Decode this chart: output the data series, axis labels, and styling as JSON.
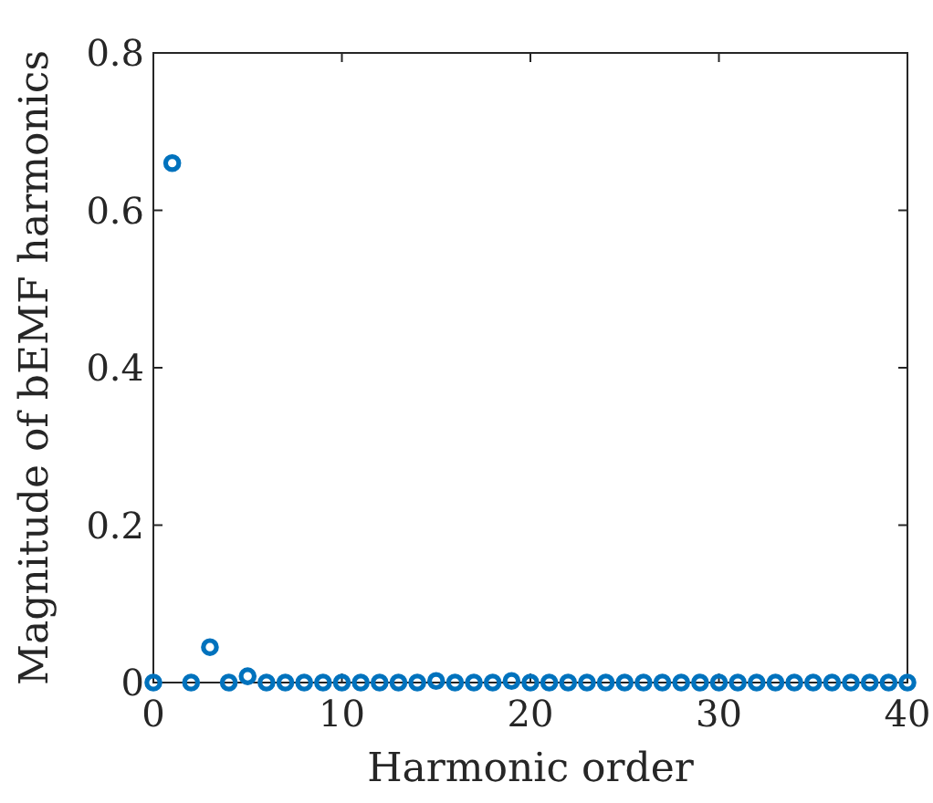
{
  "chart_data": {
    "type": "scatter",
    "xlabel": "Harmonic order",
    "ylabel": "Magnitude of bEMF harmonics",
    "x": [
      0,
      1,
      2,
      3,
      4,
      5,
      6,
      7,
      8,
      9,
      10,
      11,
      12,
      13,
      14,
      15,
      16,
      17,
      18,
      19,
      20,
      21,
      22,
      23,
      24,
      25,
      26,
      27,
      28,
      29,
      30,
      31,
      32,
      33,
      34,
      35,
      36,
      37,
      38,
      39,
      40
    ],
    "series": [
      {
        "color": "#0072bd",
        "values": [
          0,
          0.66,
          0,
          0.045,
          0,
          0.008,
          0,
          0,
          0,
          0,
          0,
          0,
          0,
          0,
          0,
          0.002,
          0,
          0,
          0,
          0.002,
          0,
          0,
          0,
          0,
          0,
          0,
          0,
          0,
          0,
          0,
          0,
          0,
          0,
          0,
          0,
          0,
          0,
          0,
          0,
          0,
          0
        ]
      }
    ],
    "xlim": [
      0,
      40
    ],
    "xticks": [
      0,
      10,
      20,
      30,
      40
    ],
    "ylim": [
      0,
      0.8
    ],
    "yticks": [
      0,
      0.2,
      0.4,
      0.6,
      0.8
    ],
    "marker": "circle",
    "grid": false
  }
}
